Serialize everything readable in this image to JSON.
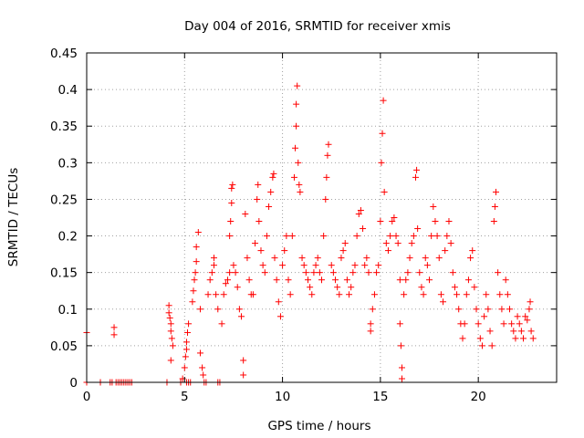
{
  "chart_data": {
    "type": "scatter",
    "title": "Day 004 of 2016, SRMTID for receiver xmis",
    "xlabel": "GPS time / hours",
    "ylabel": "SRMTID / TECUs",
    "xlim": [
      0,
      24
    ],
    "ylim": [
      0,
      0.45
    ],
    "xticks": [
      0,
      5,
      10,
      15,
      20
    ],
    "xtick_labels": [
      "0",
      "5",
      "10",
      "15",
      "20"
    ],
    "yticks": [
      0,
      0.05,
      0.1,
      0.15,
      0.2,
      0.25,
      0.3,
      0.35,
      0.4,
      0.45
    ],
    "ytick_labels": [
      "0",
      "0.05",
      "0.1",
      "0.15",
      "0.2",
      "0.25",
      "0.3",
      "0.35",
      "0.4",
      "0.45"
    ],
    "grid": true,
    "marker": "+",
    "marker_color": "#ff0000",
    "series": [
      {
        "name": "SRMTID",
        "points": [
          [
            0.0,
            0.068
          ],
          [
            0.0,
            0.0
          ],
          [
            0.7,
            0.0
          ],
          [
            1.2,
            0.0
          ],
          [
            1.3,
            0.0
          ],
          [
            1.4,
            0.075
          ],
          [
            1.4,
            0.065
          ],
          [
            1.5,
            0.0
          ],
          [
            1.6,
            0.0
          ],
          [
            1.7,
            0.0
          ],
          [
            1.8,
            0.0
          ],
          [
            1.9,
            0.0
          ],
          [
            2.0,
            0.0
          ],
          [
            2.1,
            0.0
          ],
          [
            2.2,
            0.0
          ],
          [
            2.3,
            0.0
          ],
          [
            4.1,
            0.0
          ],
          [
            4.2,
            0.105
          ],
          [
            4.2,
            0.095
          ],
          [
            4.25,
            0.088
          ],
          [
            4.3,
            0.08
          ],
          [
            4.3,
            0.07
          ],
          [
            4.35,
            0.06
          ],
          [
            4.4,
            0.05
          ],
          [
            4.3,
            0.03
          ],
          [
            4.8,
            0.0
          ],
          [
            4.9,
            0.005
          ],
          [
            5.0,
            0.02
          ],
          [
            5.05,
            0.035
          ],
          [
            5.1,
            0.045
          ],
          [
            5.1,
            0.055
          ],
          [
            5.15,
            0.068
          ],
          [
            5.2,
            0.08
          ],
          [
            5.1,
            0.0
          ],
          [
            5.2,
            0.0
          ],
          [
            5.3,
            0.0
          ],
          [
            5.4,
            0.11
          ],
          [
            5.45,
            0.125
          ],
          [
            5.5,
            0.14
          ],
          [
            5.55,
            0.15
          ],
          [
            5.6,
            0.165
          ],
          [
            5.6,
            0.185
          ],
          [
            5.7,
            0.205
          ],
          [
            5.8,
            0.1
          ],
          [
            5.8,
            0.04
          ],
          [
            5.9,
            0.02
          ],
          [
            5.95,
            0.01
          ],
          [
            6.0,
            0.0
          ],
          [
            6.1,
            0.0
          ],
          [
            6.2,
            0.12
          ],
          [
            6.3,
            0.14
          ],
          [
            6.4,
            0.15
          ],
          [
            6.5,
            0.16
          ],
          [
            6.5,
            0.17
          ],
          [
            6.6,
            0.12
          ],
          [
            6.7,
            0.1
          ],
          [
            6.7,
            0.0
          ],
          [
            6.8,
            0.0
          ],
          [
            6.9,
            0.08
          ],
          [
            7.0,
            0.12
          ],
          [
            7.1,
            0.135
          ],
          [
            7.2,
            0.14
          ],
          [
            7.3,
            0.15
          ],
          [
            7.3,
            0.2
          ],
          [
            7.35,
            0.22
          ],
          [
            7.4,
            0.245
          ],
          [
            7.4,
            0.265
          ],
          [
            7.45,
            0.27
          ],
          [
            7.5,
            0.16
          ],
          [
            7.6,
            0.15
          ],
          [
            7.7,
            0.13
          ],
          [
            7.8,
            0.1
          ],
          [
            7.9,
            0.09
          ],
          [
            8.0,
            0.03
          ],
          [
            8.0,
            0.01
          ],
          [
            8.1,
            0.23
          ],
          [
            8.2,
            0.17
          ],
          [
            8.3,
            0.14
          ],
          [
            8.4,
            0.12
          ],
          [
            8.5,
            0.12
          ],
          [
            8.6,
            0.19
          ],
          [
            8.7,
            0.25
          ],
          [
            8.75,
            0.27
          ],
          [
            8.8,
            0.22
          ],
          [
            8.9,
            0.18
          ],
          [
            9.0,
            0.16
          ],
          [
            9.1,
            0.15
          ],
          [
            9.2,
            0.2
          ],
          [
            9.3,
            0.24
          ],
          [
            9.4,
            0.26
          ],
          [
            9.5,
            0.28
          ],
          [
            9.55,
            0.285
          ],
          [
            9.6,
            0.17
          ],
          [
            9.7,
            0.14
          ],
          [
            9.8,
            0.11
          ],
          [
            9.9,
            0.09
          ],
          [
            10.0,
            0.16
          ],
          [
            10.1,
            0.18
          ],
          [
            10.2,
            0.2
          ],
          [
            10.3,
            0.14
          ],
          [
            10.4,
            0.12
          ],
          [
            10.5,
            0.2
          ],
          [
            10.6,
            0.28
          ],
          [
            10.65,
            0.32
          ],
          [
            10.7,
            0.35
          ],
          [
            10.7,
            0.38
          ],
          [
            10.75,
            0.405
          ],
          [
            10.8,
            0.3
          ],
          [
            10.85,
            0.27
          ],
          [
            10.9,
            0.26
          ],
          [
            11.0,
            0.17
          ],
          [
            11.1,
            0.16
          ],
          [
            11.2,
            0.15
          ],
          [
            11.3,
            0.14
          ],
          [
            11.4,
            0.13
          ],
          [
            11.5,
            0.12
          ],
          [
            11.6,
            0.15
          ],
          [
            11.7,
            0.16
          ],
          [
            11.8,
            0.17
          ],
          [
            11.9,
            0.15
          ],
          [
            12.0,
            0.14
          ],
          [
            12.1,
            0.2
          ],
          [
            12.2,
            0.25
          ],
          [
            12.25,
            0.28
          ],
          [
            12.3,
            0.31
          ],
          [
            12.35,
            0.325
          ],
          [
            12.5,
            0.16
          ],
          [
            12.6,
            0.15
          ],
          [
            12.7,
            0.14
          ],
          [
            12.8,
            0.13
          ],
          [
            12.9,
            0.12
          ],
          [
            13.0,
            0.17
          ],
          [
            13.1,
            0.18
          ],
          [
            13.2,
            0.19
          ],
          [
            13.3,
            0.14
          ],
          [
            13.4,
            0.12
          ],
          [
            13.5,
            0.13
          ],
          [
            13.6,
            0.15
          ],
          [
            13.7,
            0.16
          ],
          [
            13.8,
            0.2
          ],
          [
            13.9,
            0.23
          ],
          [
            14.0,
            0.235
          ],
          [
            14.1,
            0.21
          ],
          [
            14.2,
            0.16
          ],
          [
            14.3,
            0.17
          ],
          [
            14.4,
            0.15
          ],
          [
            14.5,
            0.07
          ],
          [
            14.5,
            0.08
          ],
          [
            14.6,
            0.1
          ],
          [
            14.7,
            0.12
          ],
          [
            14.8,
            0.15
          ],
          [
            14.9,
            0.16
          ],
          [
            15.0,
            0.22
          ],
          [
            15.05,
            0.3
          ],
          [
            15.1,
            0.34
          ],
          [
            15.15,
            0.385
          ],
          [
            15.2,
            0.26
          ],
          [
            15.3,
            0.19
          ],
          [
            15.4,
            0.18
          ],
          [
            15.5,
            0.2
          ],
          [
            15.6,
            0.22
          ],
          [
            15.7,
            0.225
          ],
          [
            15.8,
            0.2
          ],
          [
            15.9,
            0.19
          ],
          [
            16.0,
            0.14
          ],
          [
            16.0,
            0.08
          ],
          [
            16.05,
            0.05
          ],
          [
            16.1,
            0.02
          ],
          [
            16.1,
            0.005
          ],
          [
            16.2,
            0.12
          ],
          [
            16.3,
            0.14
          ],
          [
            16.4,
            0.15
          ],
          [
            16.5,
            0.17
          ],
          [
            16.6,
            0.19
          ],
          [
            16.7,
            0.2
          ],
          [
            16.8,
            0.28
          ],
          [
            16.85,
            0.29
          ],
          [
            16.9,
            0.21
          ],
          [
            17.0,
            0.15
          ],
          [
            17.1,
            0.13
          ],
          [
            17.2,
            0.12
          ],
          [
            17.3,
            0.17
          ],
          [
            17.4,
            0.16
          ],
          [
            17.5,
            0.14
          ],
          [
            17.6,
            0.2
          ],
          [
            17.7,
            0.24
          ],
          [
            17.8,
            0.22
          ],
          [
            17.9,
            0.2
          ],
          [
            18.0,
            0.17
          ],
          [
            18.1,
            0.12
          ],
          [
            18.2,
            0.11
          ],
          [
            18.3,
            0.18
          ],
          [
            18.4,
            0.2
          ],
          [
            18.5,
            0.22
          ],
          [
            18.6,
            0.19
          ],
          [
            18.7,
            0.15
          ],
          [
            18.8,
            0.13
          ],
          [
            18.9,
            0.12
          ],
          [
            19.0,
            0.1
          ],
          [
            19.1,
            0.08
          ],
          [
            19.2,
            0.06
          ],
          [
            19.3,
            0.08
          ],
          [
            19.4,
            0.12
          ],
          [
            19.5,
            0.14
          ],
          [
            19.6,
            0.17
          ],
          [
            19.7,
            0.18
          ],
          [
            19.8,
            0.13
          ],
          [
            19.9,
            0.1
          ],
          [
            20.0,
            0.08
          ],
          [
            20.1,
            0.06
          ],
          [
            20.2,
            0.05
          ],
          [
            20.3,
            0.09
          ],
          [
            20.4,
            0.12
          ],
          [
            20.5,
            0.1
          ],
          [
            20.6,
            0.07
          ],
          [
            20.7,
            0.05
          ],
          [
            20.8,
            0.22
          ],
          [
            20.85,
            0.24
          ],
          [
            20.9,
            0.26
          ],
          [
            21.0,
            0.15
          ],
          [
            21.1,
            0.12
          ],
          [
            21.2,
            0.1
          ],
          [
            21.3,
            0.08
          ],
          [
            21.4,
            0.14
          ],
          [
            21.5,
            0.12
          ],
          [
            21.6,
            0.1
          ],
          [
            21.7,
            0.08
          ],
          [
            21.8,
            0.07
          ],
          [
            21.9,
            0.06
          ],
          [
            22.0,
            0.09
          ],
          [
            22.1,
            0.08
          ],
          [
            22.2,
            0.07
          ],
          [
            22.3,
            0.06
          ],
          [
            22.4,
            0.09
          ],
          [
            22.5,
            0.085
          ],
          [
            22.6,
            0.1
          ],
          [
            22.65,
            0.11
          ],
          [
            22.7,
            0.07
          ],
          [
            22.8,
            0.06
          ]
        ]
      }
    ]
  }
}
